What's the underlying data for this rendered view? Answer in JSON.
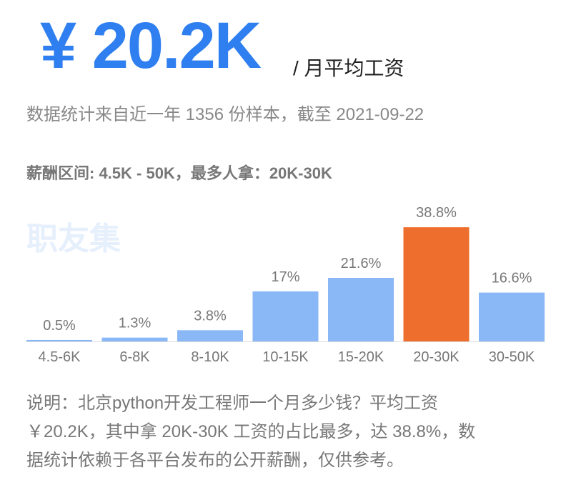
{
  "header": {
    "amount": "¥ 20.2K",
    "unit": "/ 月平均工资",
    "source": "数据统计来自近一年 1356 份样本，截至 2021-09-22",
    "range": "薪酬区间: 4.5K - 50K，最多人拿：20K-30K",
    "watermark": "职友集"
  },
  "chart_data": {
    "type": "bar",
    "categories": [
      "4.5-6K",
      "6-8K",
      "8-10K",
      "10-15K",
      "15-20K",
      "20-30K",
      "30-50K"
    ],
    "values": [
      0.5,
      1.3,
      3.8,
      17,
      21.6,
      38.8,
      16.6
    ],
    "value_labels": [
      "0.5%",
      "1.3%",
      "3.8%",
      "17%",
      "21.6%",
      "38.8%",
      "16.6%"
    ],
    "colors": [
      "#8ab8f7",
      "#8ab8f7",
      "#8ab8f7",
      "#8ab8f7",
      "#8ab8f7",
      "#ee6f2d",
      "#8ab8f7"
    ]
  },
  "note": {
    "lines": [
      "说明：北京python开发工程师一个月多少钱？平均工资",
      "￥20.2K，其中拿 20K-30K 工资的占比最多，达 38.8%，数",
      "据统计依赖于各平台发布的公开薪酬，仅供参考。"
    ]
  }
}
